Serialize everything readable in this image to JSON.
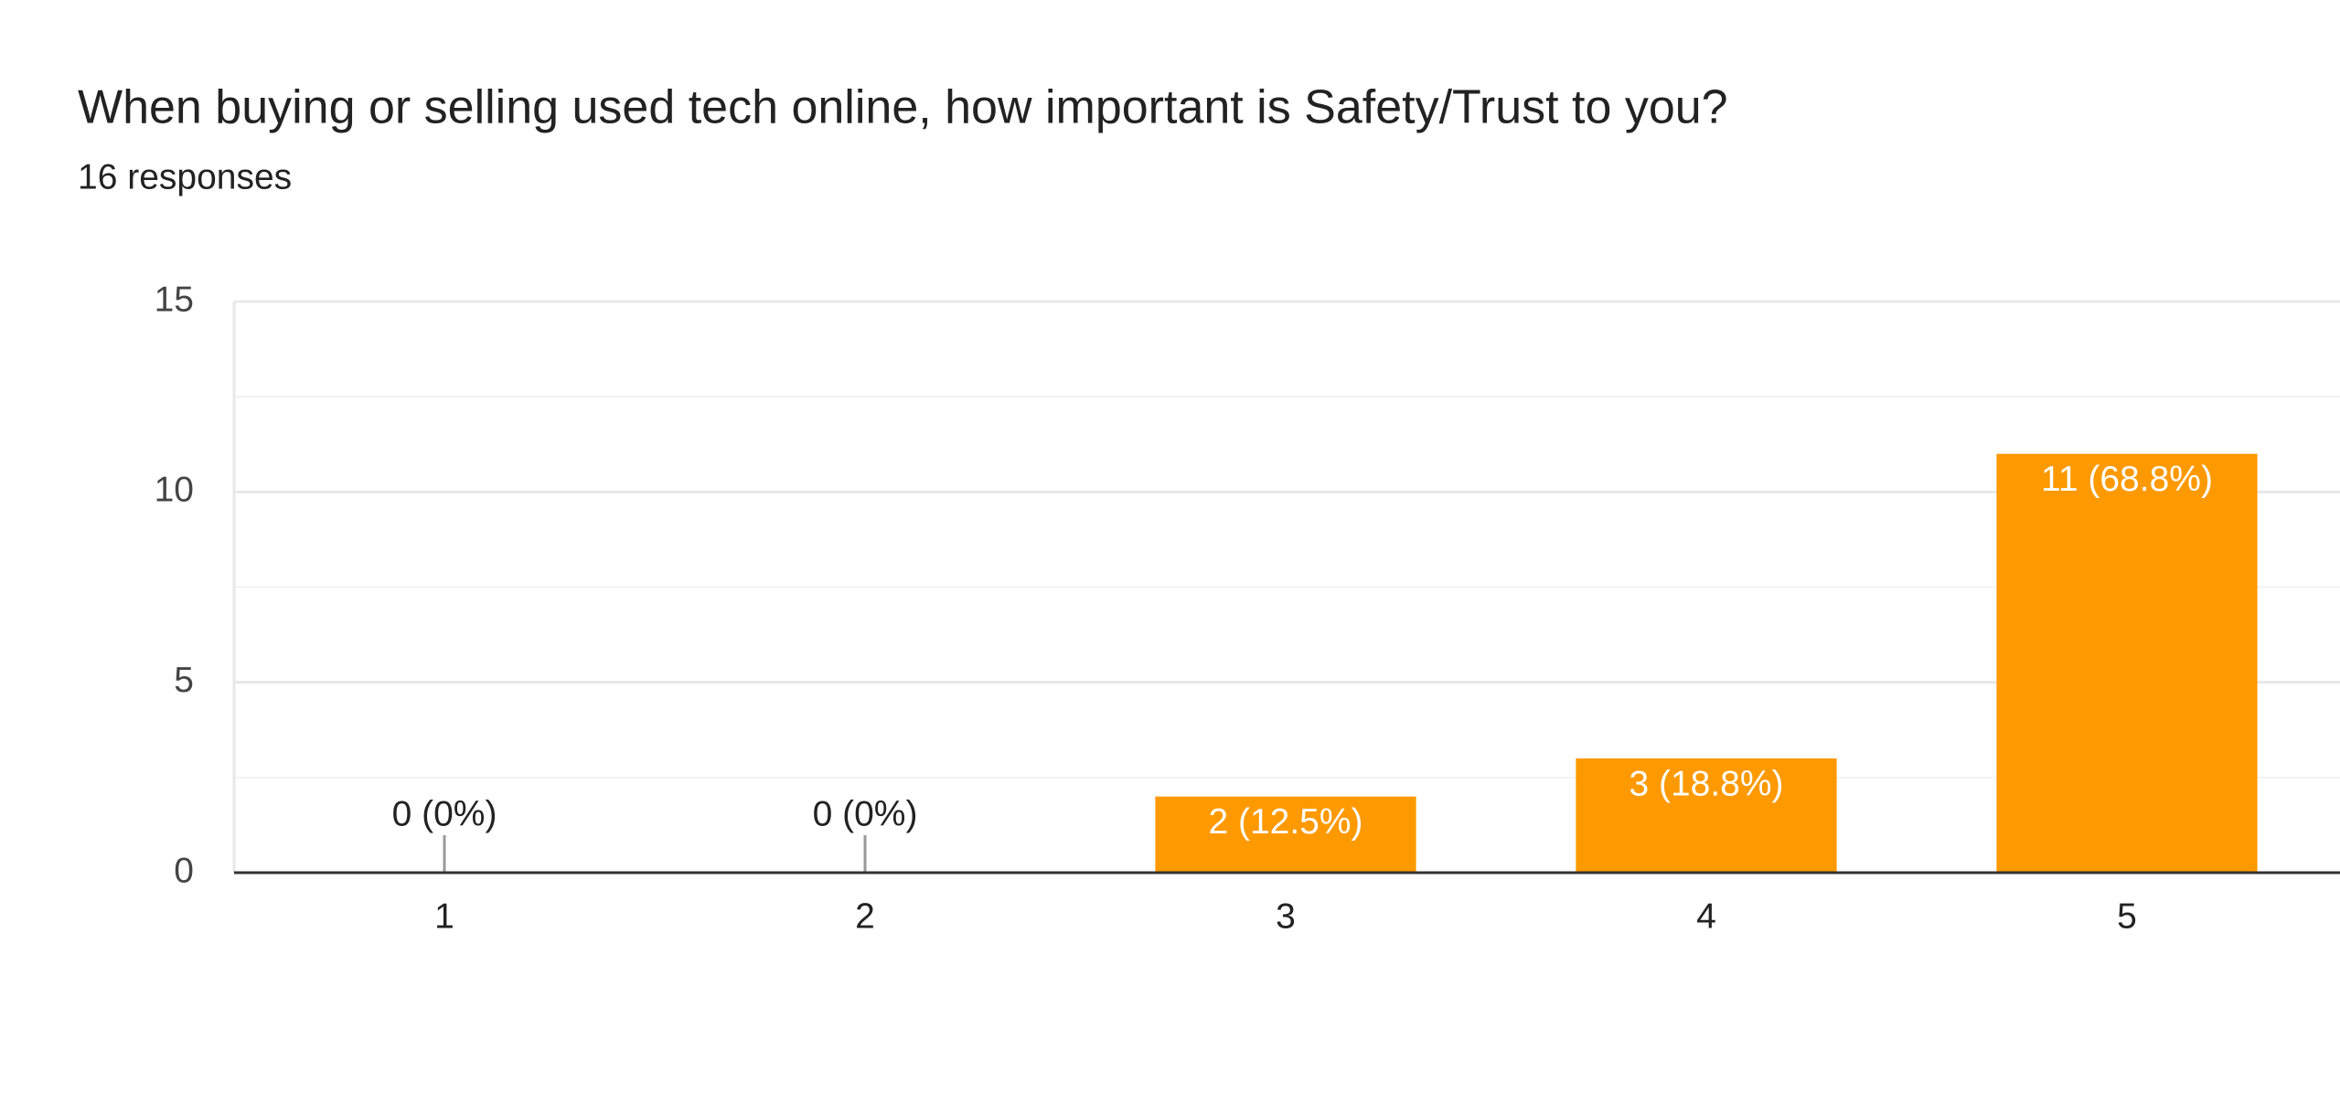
{
  "chart_data": {
    "type": "bar",
    "title": "When buying or selling used tech online, how important is Safety/Trust to you?",
    "subtitle": "16 responses",
    "categories": [
      "1",
      "2",
      "3",
      "4",
      "5"
    ],
    "values": [
      0,
      0,
      2,
      3,
      11
    ],
    "value_labels": [
      "0 (0%)",
      "0 (0%)",
      "2 (12.5%)",
      "3 (18.8%)",
      "11 (68.8%)"
    ],
    "color": "#ff9900",
    "ylim": [
      0,
      15
    ],
    "yticks": [
      0,
      5,
      10,
      15
    ],
    "minor_yticks": [
      2.5,
      7.5,
      12.5
    ],
    "grid": true
  }
}
